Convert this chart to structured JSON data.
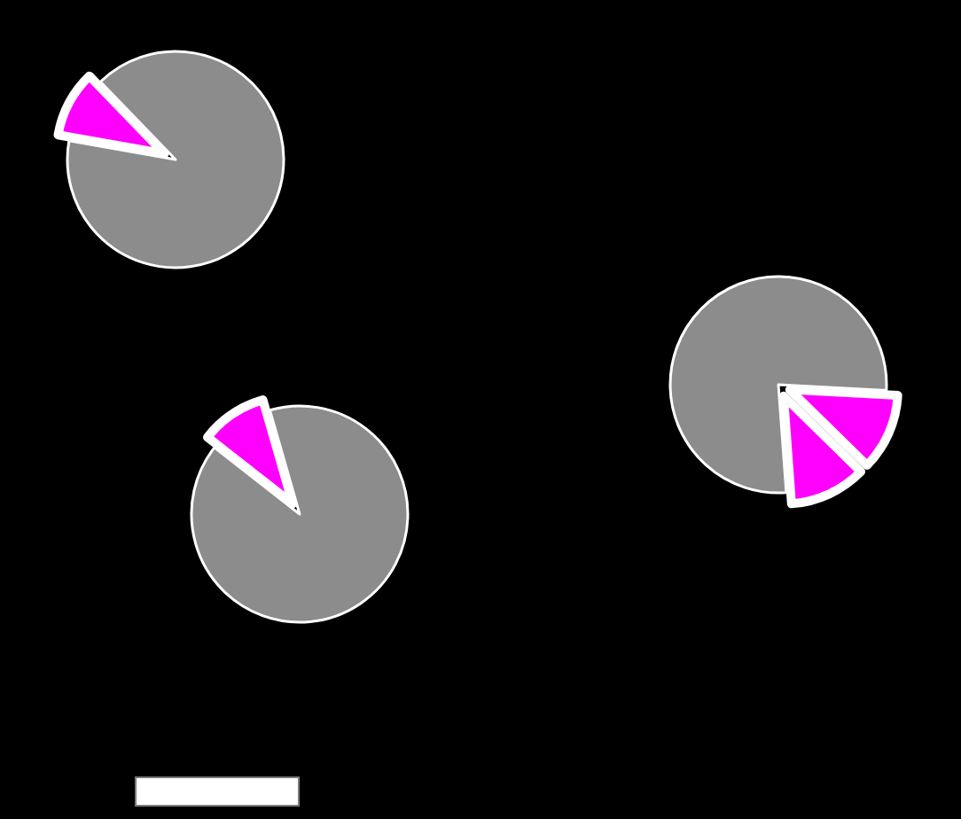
{
  "chart_data": [
    {
      "type": "pie",
      "categories": [
        null,
        null
      ],
      "values": [
        10,
        90
      ],
      "colors": [
        "#ff00ff",
        "#8c8c8c"
      ]
    },
    {
      "type": "pie",
      "categories": [
        null,
        null,
        null
      ],
      "values": [
        11.5,
        11.5,
        77
      ],
      "colors": [
        "#ff00ff",
        "#ff00ff",
        "#8c8c8c"
      ]
    },
    {
      "type": "pie",
      "categories": [
        null,
        null
      ],
      "values": [
        10,
        90
      ],
      "colors": [
        "#ff00ff",
        "#8c8c8c"
      ]
    }
  ]
}
